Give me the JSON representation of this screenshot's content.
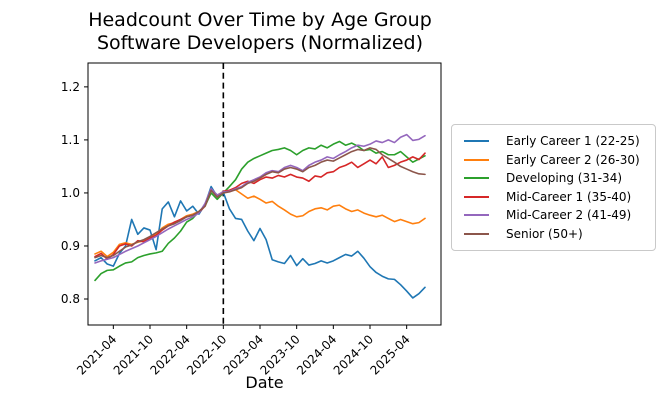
{
  "figure": {
    "background": "#ffffff",
    "text_color": "#000000",
    "axis_color": "#000000"
  },
  "chart_data": {
    "type": "line",
    "title": "Headcount Over Time by Age Group\nSoftware Developers (Normalized)",
    "title_line1": "Headcount Over Time by Age Group",
    "title_line2": "Software Developers (Normalized)",
    "xlabel": "Date",
    "ylabel": "",
    "grid": false,
    "legend_position": "right-outside",
    "ylim": [
      0.751,
      1.245
    ],
    "y_ticks": [
      {
        "label": "0.8",
        "value": 0.8
      },
      {
        "label": "0.9",
        "value": 0.9
      },
      {
        "label": "1.0",
        "value": 1.0
      },
      {
        "label": "1.1",
        "value": 1.1
      },
      {
        "label": "1.2",
        "value": 1.2
      }
    ],
    "x_tick_labels": [
      "2021-04",
      "2021-10",
      "2022-04",
      "2022-10",
      "2023-04",
      "2023-10",
      "2024-04",
      "2024-10",
      "2025-04"
    ],
    "vline": {
      "date": "2022-10",
      "style": "dashed",
      "color": "#000000"
    },
    "x": [
      "2021-01",
      "2021-02",
      "2021-03",
      "2021-04",
      "2021-05",
      "2021-06",
      "2021-07",
      "2021-08",
      "2021-09",
      "2021-10",
      "2021-11",
      "2021-12",
      "2022-01",
      "2022-02",
      "2022-03",
      "2022-04",
      "2022-05",
      "2022-06",
      "2022-07",
      "2022-08",
      "2022-09",
      "2022-10",
      "2022-11",
      "2022-12",
      "2023-01",
      "2023-02",
      "2023-03",
      "2023-04",
      "2023-05",
      "2023-06",
      "2023-07",
      "2023-08",
      "2023-09",
      "2023-10",
      "2023-11",
      "2023-12",
      "2024-01",
      "2024-02",
      "2024-03",
      "2024-04",
      "2024-05",
      "2024-06",
      "2024-07",
      "2024-08",
      "2024-09",
      "2024-10",
      "2024-11",
      "2024-12",
      "2025-01",
      "2025-02",
      "2025-03",
      "2025-04",
      "2025-05",
      "2025-06",
      "2025-07"
    ],
    "series": [
      {
        "name": "Early Career 1 (22-25)",
        "color": "#1f77b4",
        "values": [
          0.872,
          0.878,
          0.866,
          0.862,
          0.886,
          0.9,
          0.95,
          0.922,
          0.934,
          0.93,
          0.893,
          0.97,
          0.983,
          0.955,
          0.985,
          0.966,
          0.975,
          0.96,
          0.978,
          1.012,
          0.993,
          1.001,
          0.97,
          0.952,
          0.95,
          0.928,
          0.91,
          0.933,
          0.912,
          0.874,
          0.87,
          0.867,
          0.882,
          0.863,
          0.876,
          0.864,
          0.867,
          0.872,
          0.868,
          0.872,
          0.878,
          0.884,
          0.881,
          0.89,
          0.877,
          0.861,
          0.85,
          0.843,
          0.838,
          0.837,
          0.827,
          0.815,
          0.802,
          0.81,
          0.822
        ]
      },
      {
        "name": "Early Career 2 (26-30)",
        "color": "#ff7f0e",
        "values": [
          0.885,
          0.89,
          0.88,
          0.888,
          0.903,
          0.906,
          0.903,
          0.907,
          0.91,
          0.917,
          0.922,
          0.934,
          0.941,
          0.944,
          0.95,
          0.957,
          0.96,
          0.965,
          0.976,
          1.005,
          0.996,
          1.002,
          1.004,
          1.006,
          0.998,
          0.99,
          0.994,
          0.988,
          0.981,
          0.984,
          0.975,
          0.968,
          0.96,
          0.955,
          0.957,
          0.965,
          0.97,
          0.972,
          0.968,
          0.975,
          0.977,
          0.97,
          0.965,
          0.968,
          0.962,
          0.958,
          0.955,
          0.958,
          0.952,
          0.946,
          0.95,
          0.946,
          0.942,
          0.944,
          0.952
        ]
      },
      {
        "name": "Developing (31-34)",
        "color": "#2ca02c",
        "values": [
          0.835,
          0.848,
          0.854,
          0.855,
          0.862,
          0.868,
          0.87,
          0.878,
          0.882,
          0.885,
          0.887,
          0.89,
          0.905,
          0.915,
          0.928,
          0.945,
          0.952,
          0.965,
          0.975,
          1.0,
          0.988,
          1.0,
          1.012,
          1.025,
          1.045,
          1.058,
          1.065,
          1.07,
          1.075,
          1.08,
          1.082,
          1.085,
          1.08,
          1.072,
          1.08,
          1.085,
          1.083,
          1.09,
          1.085,
          1.092,
          1.097,
          1.09,
          1.094,
          1.088,
          1.08,
          1.082,
          1.075,
          1.078,
          1.072,
          1.072,
          1.078,
          1.068,
          1.058,
          1.064,
          1.07
        ]
      },
      {
        "name": "Mid-Career 1 (35-40)",
        "color": "#d62728",
        "values": [
          0.88,
          0.886,
          0.875,
          0.884,
          0.9,
          0.904,
          0.9,
          0.91,
          0.908,
          0.915,
          0.92,
          0.93,
          0.938,
          0.945,
          0.95,
          0.955,
          0.958,
          0.963,
          0.975,
          1.006,
          0.994,
          1.003,
          1.005,
          1.01,
          1.018,
          1.022,
          1.018,
          1.025,
          1.03,
          1.028,
          1.033,
          1.03,
          1.035,
          1.03,
          1.028,
          1.022,
          1.032,
          1.03,
          1.038,
          1.04,
          1.048,
          1.052,
          1.058,
          1.048,
          1.055,
          1.062,
          1.055,
          1.068,
          1.048,
          1.052,
          1.058,
          1.062,
          1.068,
          1.063,
          1.075
        ]
      },
      {
        "name": "Mid-Career 2 (41-49)",
        "color": "#9467bd",
        "values": [
          0.868,
          0.872,
          0.875,
          0.878,
          0.884,
          0.89,
          0.895,
          0.9,
          0.906,
          0.912,
          0.918,
          0.925,
          0.932,
          0.938,
          0.944,
          0.95,
          0.955,
          0.962,
          0.98,
          1.008,
          0.996,
          1.002,
          1.003,
          1.008,
          1.012,
          1.02,
          1.025,
          1.03,
          1.038,
          1.042,
          1.04,
          1.048,
          1.052,
          1.048,
          1.042,
          1.052,
          1.058,
          1.062,
          1.068,
          1.065,
          1.072,
          1.078,
          1.085,
          1.09,
          1.088,
          1.092,
          1.098,
          1.095,
          1.1,
          1.095,
          1.105,
          1.11,
          1.099,
          1.101,
          1.108
        ]
      },
      {
        "name": "Senior (50+)",
        "color": "#8c564b",
        "values": [
          0.878,
          0.882,
          0.878,
          0.882,
          0.89,
          0.898,
          0.902,
          0.908,
          0.912,
          0.918,
          0.925,
          0.932,
          0.938,
          0.942,
          0.948,
          0.955,
          0.958,
          0.965,
          0.975,
          1.005,
          0.992,
          1.0,
          1.002,
          1.006,
          1.01,
          1.018,
          1.022,
          1.028,
          1.035,
          1.04,
          1.038,
          1.045,
          1.048,
          1.045,
          1.04,
          1.048,
          1.052,
          1.058,
          1.062,
          1.06,
          1.066,
          1.072,
          1.078,
          1.082,
          1.08,
          1.085,
          1.082,
          1.072,
          1.065,
          1.058,
          1.05,
          1.045,
          1.04,
          1.036,
          1.035
        ]
      }
    ]
  }
}
